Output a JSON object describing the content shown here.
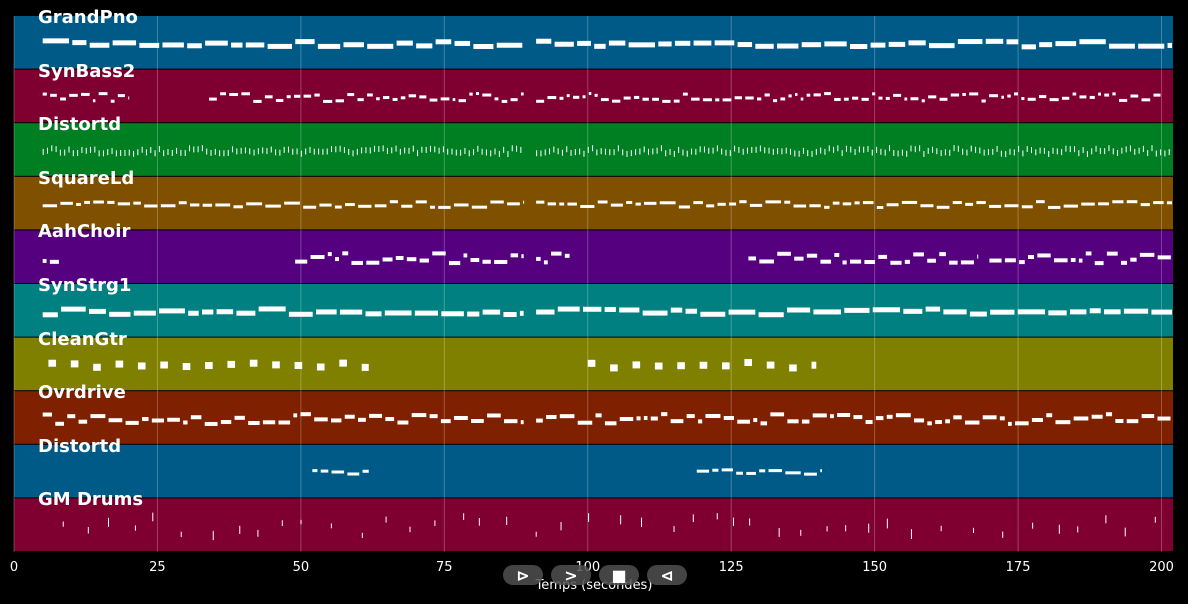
{
  "chart_data": {
    "type": "piano-roll",
    "xlabel": "Temps (secondes)",
    "xlim": [
      0,
      202
    ],
    "x_ticks": [
      0,
      25,
      50,
      75,
      100,
      125,
      150,
      175,
      200
    ],
    "grid": true,
    "tracks": [
      {
        "name": "GrandPno",
        "color": "#005a87"
      },
      {
        "name": "SynBass2",
        "color": "#7f0030"
      },
      {
        "name": "Distortd",
        "color": "#007f22"
      },
      {
        "name": "SquareLd",
        "color": "#7f5000"
      },
      {
        "name": "AahChoir",
        "color": "#55007f"
      },
      {
        "name": "SynStrg1",
        "color": "#008080"
      },
      {
        "name": "CleanGtr",
        "color": "#808000"
      },
      {
        "name": "Ovrdrive",
        "color": "#7f2000"
      },
      {
        "name": "Distortd",
        "color": "#005a87"
      },
      {
        "name": "GM Drums",
        "color": "#7f0030"
      }
    ]
  },
  "controls": {
    "play": "⊳",
    "next": ">",
    "stop": "■",
    "prev": "⊲"
  }
}
